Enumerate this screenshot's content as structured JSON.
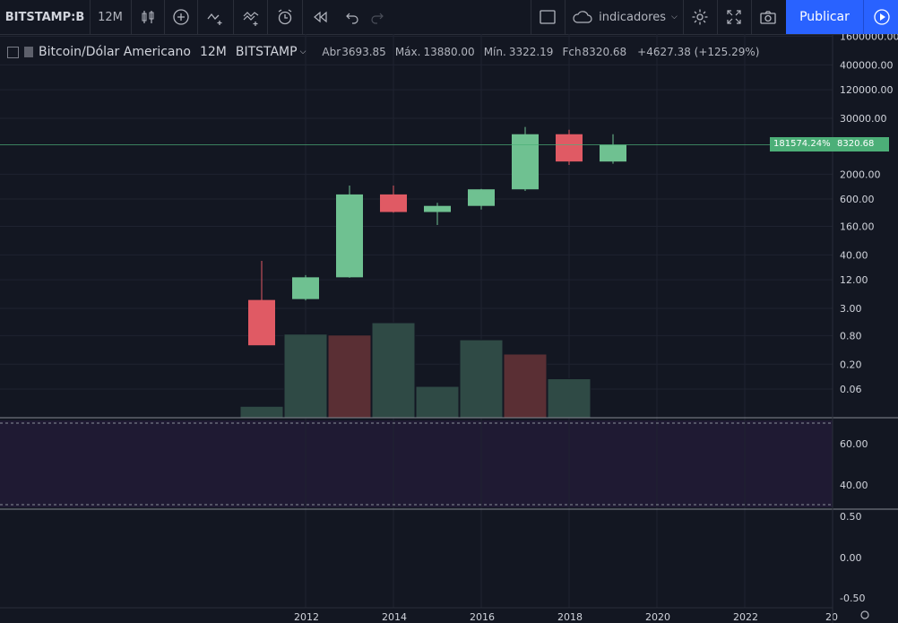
{
  "toolbar": {
    "symbol": "BITSTAMP:B",
    "interval": "12M",
    "indicators_label": "indicadores",
    "publish_label": "Publicar",
    "icons": [
      "candles-icon",
      "add-compare-icon",
      "indicators-icon",
      "templates-icon",
      "alert-icon",
      "replay-icon",
      "undo-icon",
      "redo-icon",
      "layout-icon",
      "cloud-icon",
      "settings-icon",
      "fullscreen-icon",
      "snapshot-icon",
      "play-icon"
    ]
  },
  "legend": {
    "title": "Bitcoin/Dólar Americano",
    "interval": "12M",
    "exchange": "BITSTAMP",
    "open_label": "Abr",
    "open": "3693.85",
    "high_label": "Máx.",
    "high": "13880.00",
    "low_label": "Mín.",
    "low": "3322.19",
    "close_label": "Fch",
    "close": "8320.68",
    "change": "+4627.38 (+125.29%)"
  },
  "price_axis": {
    "main_ticks": [
      "1600000.00",
      "400000.00",
      "120000.00",
      "30000.00",
      "2000.00",
      "600.00",
      "160.00",
      "40.00",
      "12.00",
      "3.00",
      "0.80",
      "0.20",
      "0.06"
    ],
    "osc1_ticks": [
      "60.00",
      "40.00"
    ],
    "osc2_ticks": [
      "0.50",
      "0.00",
      "-0.50"
    ],
    "current_price": "8320.68",
    "percent_tag": "181574.24%"
  },
  "time_axis": {
    "ticks": [
      "2012",
      "2014",
      "2016",
      "2018",
      "2020",
      "2022",
      "20"
    ]
  },
  "chart_data": {
    "type": "candlestick",
    "scale": "log",
    "colors": {
      "up": "#6fc191",
      "down": "#e05a64",
      "volume_up": "#2f4a45",
      "volume_down": "#5a2f34",
      "bg": "#131722",
      "grid": "#1f2330",
      "rsi_band": "#1f1a33"
    },
    "candles": [
      {
        "year": 2011,
        "open": 4.5,
        "high": 30,
        "low": 2.5,
        "close": 0.5,
        "dir": "down"
      },
      {
        "year": 2012,
        "open": 4.7,
        "high": 15,
        "low": 4.4,
        "close": 13.5,
        "dir": "up"
      },
      {
        "year": 2013,
        "open": 13.5,
        "high": 1150,
        "low": 13.2,
        "close": 750,
        "dir": "up"
      },
      {
        "year": 2014,
        "open": 750,
        "high": 1150,
        "low": 310,
        "close": 320,
        "dir": "down"
      },
      {
        "year": 2015,
        "open": 320,
        "high": 500,
        "low": 170,
        "close": 430,
        "dir": "up"
      },
      {
        "year": 2016,
        "open": 430,
        "high": 980,
        "low": 360,
        "close": 960,
        "dir": "up"
      },
      {
        "year": 2017,
        "open": 960,
        "high": 19700,
        "low": 890,
        "close": 13880,
        "dir": "up"
      },
      {
        "year": 2018,
        "open": 13880,
        "high": 17200,
        "low": 3130,
        "close": 3700,
        "dir": "down"
      },
      {
        "year": 2019,
        "open": 3693.85,
        "high": 13880,
        "low": 3322.19,
        "close": 8320.68,
        "dir": "up"
      }
    ],
    "volume": [
      {
        "year": 2011,
        "rel": 0.12,
        "dir": "up"
      },
      {
        "year": 2012,
        "rel": 0.88,
        "dir": "up"
      },
      {
        "year": 2013,
        "rel": 0.87,
        "dir": "down"
      },
      {
        "year": 2014,
        "rel": 1.0,
        "dir": "up"
      },
      {
        "year": 2015,
        "rel": 0.33,
        "dir": "up"
      },
      {
        "year": 2016,
        "rel": 0.82,
        "dir": "up"
      },
      {
        "year": 2017,
        "rel": 0.67,
        "dir": "down"
      },
      {
        "year": 2018,
        "rel": 0.41,
        "dir": "up"
      }
    ]
  }
}
